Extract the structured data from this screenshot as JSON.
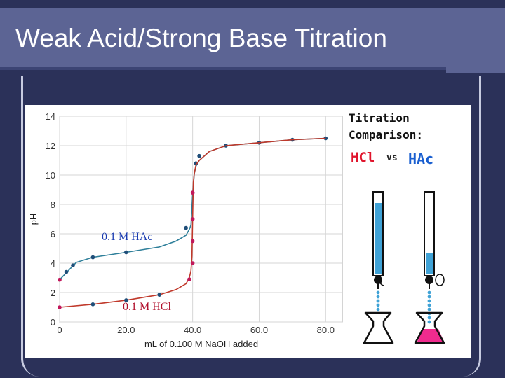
{
  "slide": {
    "title": "Weak Acid/Strong Base Titration"
  },
  "chart_data": {
    "type": "line",
    "xlabel": "mL of 0.100 M NaOH added",
    "ylabel": "pH",
    "xlim": [
      0,
      85
    ],
    "ylim": [
      0,
      14
    ],
    "x_ticks": [
      "0",
      "20.0",
      "40.0",
      "60.0",
      "80.0"
    ],
    "y_ticks": [
      "0",
      "2",
      "4",
      "6",
      "8",
      "10",
      "12",
      "14"
    ],
    "grid": true,
    "series": [
      {
        "name": "0.1 M HAc",
        "color": "#2e7f9a",
        "points": [
          [
            0,
            2.87
          ],
          [
            5,
            4.05
          ],
          [
            10,
            4.4
          ],
          [
            20,
            4.74
          ],
          [
            30,
            5.1
          ],
          [
            35,
            5.5
          ],
          [
            38,
            5.9
          ],
          [
            39,
            6.3
          ],
          [
            39.5,
            6.6
          ],
          [
            40,
            8.7
          ],
          [
            40.5,
            10.1
          ],
          [
            41,
            10.6
          ],
          [
            42,
            11.0
          ],
          [
            45,
            11.6
          ],
          [
            50,
            12.0
          ],
          [
            60,
            12.2
          ],
          [
            70,
            12.4
          ],
          [
            80,
            12.5
          ]
        ],
        "markers": [
          [
            0,
            2.87
          ],
          [
            2,
            3.4
          ],
          [
            4,
            3.85
          ],
          [
            10,
            4.4
          ],
          [
            20,
            4.74
          ],
          [
            38,
            6.4
          ],
          [
            40,
            8.8
          ],
          [
            41,
            10.8
          ],
          [
            42,
            11.3
          ],
          [
            50,
            12.0
          ],
          [
            60,
            12.2
          ],
          [
            70,
            12.4
          ],
          [
            80,
            12.5
          ]
        ]
      },
      {
        "name": "0.1 M HCl",
        "color": "#c0392b",
        "points": [
          [
            0,
            1.0
          ],
          [
            10,
            1.2
          ],
          [
            20,
            1.48
          ],
          [
            30,
            1.85
          ],
          [
            35,
            2.2
          ],
          [
            38,
            2.6
          ],
          [
            39,
            3.0
          ],
          [
            39.5,
            3.5
          ],
          [
            39.8,
            4.5
          ],
          [
            40,
            7.0
          ],
          [
            40.2,
            9.5
          ],
          [
            40.5,
            10.1
          ],
          [
            41,
            10.7
          ],
          [
            42,
            11.0
          ],
          [
            45,
            11.6
          ],
          [
            50,
            12.0
          ],
          [
            60,
            12.2
          ],
          [
            70,
            12.4
          ],
          [
            80,
            12.5
          ]
        ],
        "markers": [
          [
            0,
            1.0
          ],
          [
            10,
            1.2
          ],
          [
            20,
            1.48
          ],
          [
            30,
            1.85
          ],
          [
            39,
            2.9
          ],
          [
            40,
            4.0
          ],
          [
            40,
            5.5
          ],
          [
            40,
            7.0
          ],
          [
            40,
            8.8
          ]
        ]
      }
    ],
    "annotations": [
      {
        "text": "0.1 M HAc",
        "color": "#1a3bb0"
      },
      {
        "text": "0.1 M HCl",
        "color": "#b0102c"
      }
    ]
  },
  "comparison": {
    "heading_line1": "Titration",
    "heading_line2": "Comparison:",
    "hcl_label": "HCl",
    "vs_label": "vs",
    "hac_label": "HAc",
    "hcl_color": "#e0142c",
    "hac_color": "#1a5fd0",
    "burette_liquid": "#3fa2d6",
    "flask_pink": "#f02b8e"
  }
}
